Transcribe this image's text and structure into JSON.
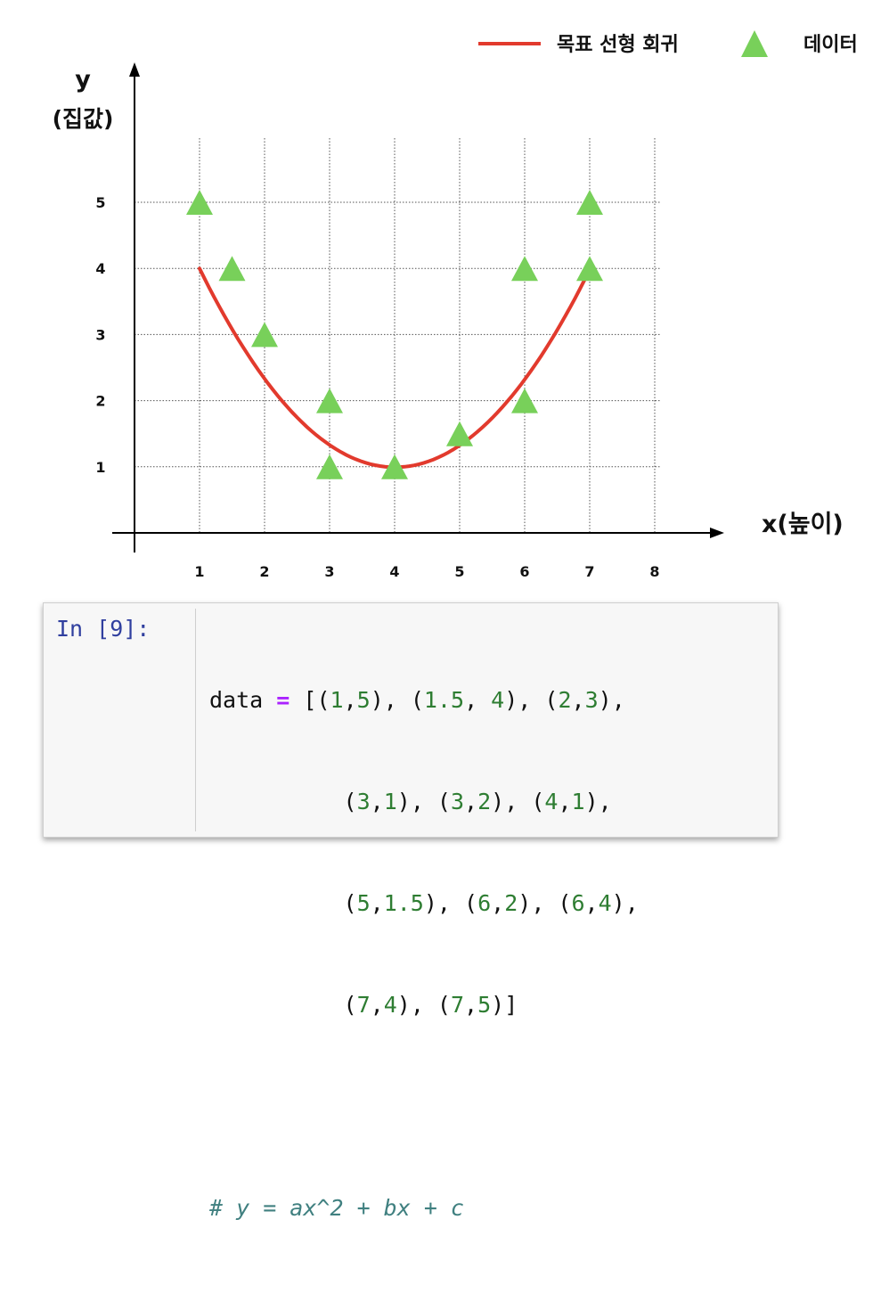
{
  "legend": {
    "regression_label": "목표 선형 회귀",
    "data_label": "데이터"
  },
  "chart_data": {
    "type": "scatter",
    "ylabel_line1": "y",
    "ylabel_line2": "(집값)",
    "xlabel": "x(높이)",
    "x_ticks": [
      "1",
      "2",
      "3",
      "4",
      "5",
      "6",
      "7",
      "8"
    ],
    "y_ticks": [
      "1",
      "2",
      "3",
      "4",
      "5"
    ],
    "xlim": [
      0,
      8.5
    ],
    "ylim": [
      0,
      6
    ],
    "grid": true,
    "legend_position": "top-right",
    "series": [
      {
        "name": "데이터",
        "marker": "triangle",
        "color": "#78d05a",
        "points": [
          [
            1,
            5
          ],
          [
            1.5,
            4
          ],
          [
            2,
            3
          ],
          [
            3,
            1
          ],
          [
            3,
            2
          ],
          [
            4,
            1
          ],
          [
            5,
            1.5
          ],
          [
            6,
            2
          ],
          [
            6,
            4
          ],
          [
            7,
            4
          ],
          [
            7,
            5
          ]
        ]
      },
      {
        "name": "목표 선형 회귀",
        "type": "line",
        "color": "#e23a2d",
        "curve": {
          "a": 0.333,
          "b": -2.667,
          "c": 6.333,
          "x_range": [
            1,
            7
          ]
        }
      }
    ]
  },
  "notebook": {
    "prompt": "In [9]:",
    "code": {
      "line1": {
        "name": "data",
        "op": "=",
        "p1": " [(",
        "n1": "1",
        "p2": ",",
        "n2": "5",
        "p3": "), (",
        "n3": "1.5",
        "p4": ", ",
        "n4": "4",
        "p5": "), (",
        "n5": "2",
        "p6": ",",
        "n6": "3",
        "p7": "),"
      },
      "line2": {
        "p1": "(",
        "n1": "3",
        "p2": ",",
        "n2": "1",
        "p3": "), (",
        "n3": "3",
        "p4": ",",
        "n4": "2",
        "p5": "), (",
        "n5": "4",
        "p6": ",",
        "n6": "1",
        "p7": "),"
      },
      "line3": {
        "p1": "(",
        "n1": "5",
        "p2": ",",
        "n2": "1.5",
        "p3": "), (",
        "n3": "6",
        "p4": ",",
        "n4": "2",
        "p5": "), (",
        "n5": "6",
        "p6": ",",
        "n6": "4",
        "p7": "),"
      },
      "line4": {
        "p1": "(",
        "n1": "7",
        "p2": ",",
        "n2": "4",
        "p3": "), (",
        "n3": "7",
        "p4": ",",
        "n4": "5",
        "p5": ")]"
      },
      "comment": "# y = ax^2 + bx + c"
    }
  }
}
